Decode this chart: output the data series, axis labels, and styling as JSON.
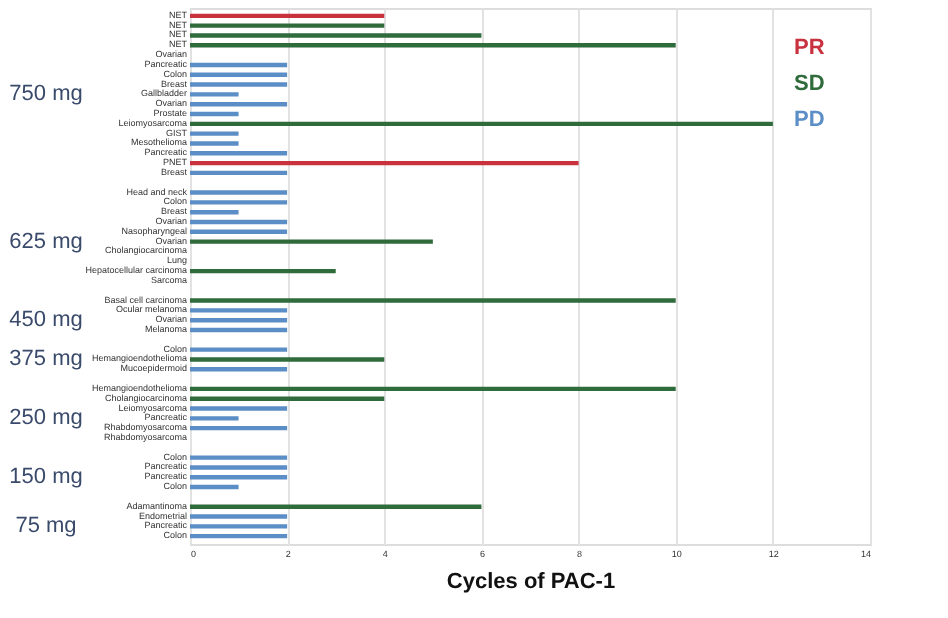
{
  "chart_data": {
    "type": "bar",
    "orientation": "horizontal",
    "xlabel": "Cycles of PAC-1",
    "categories": [
      "NET",
      "NET",
      "NET",
      "NET",
      "Ovarian",
      "Pancreatic",
      "Colon",
      "Breast",
      "Gallbladder",
      "Ovarian",
      "Prostate",
      "Leiomyosarcoma",
      "GIST",
      "Mesothelioma",
      "Pancreatic",
      "PNET",
      "Breast",
      null,
      "Head and neck",
      "Colon",
      "Breast",
      "Ovarian",
      "Nasopharyngeal",
      "Ovarian",
      "Cholangiocarcinoma",
      "Lung",
      "Hepatocellular carcinoma",
      "Sarcoma",
      null,
      "Basal cell carcinoma",
      "Ocular melanoma",
      "Ovarian",
      "Melanoma",
      null,
      "Colon",
      "Hemangioendothelioma",
      "Mucoepidermoid",
      null,
      "Hemangioendothelioma",
      "Cholangiocarcinoma",
      "Leiomyosarcoma",
      "Pancreatic",
      "Rhabdomyosarcoma",
      "Rhabdomyosarcoma",
      null,
      "Colon",
      "Pancreatic",
      "Pancreatic",
      "Colon",
      null,
      "Adamantinoma",
      "Endometrial",
      "Pancreatic",
      "Colon"
    ],
    "series": [
      {
        "name": "PR",
        "color": "#c8313e",
        "values": [
          4,
          null,
          null,
          null,
          null,
          null,
          null,
          null,
          null,
          null,
          null,
          null,
          null,
          null,
          null,
          8,
          null,
          null,
          null,
          null,
          null,
          null,
          null,
          null,
          null,
          null,
          null,
          null,
          null,
          null,
          null,
          null,
          null,
          null,
          null,
          null,
          null,
          null,
          null,
          null,
          null,
          null,
          null,
          null,
          null,
          null,
          null,
          null,
          null,
          null,
          null,
          null,
          null,
          null
        ]
      },
      {
        "name": "SD",
        "color": "#2f6b3b",
        "values": [
          null,
          4,
          6,
          10,
          null,
          null,
          null,
          null,
          null,
          null,
          null,
          12,
          null,
          null,
          null,
          null,
          null,
          null,
          null,
          null,
          null,
          null,
          null,
          5,
          null,
          null,
          3,
          null,
          null,
          10,
          null,
          null,
          null,
          null,
          null,
          4,
          null,
          null,
          10,
          4,
          null,
          null,
          null,
          null,
          null,
          null,
          null,
          null,
          null,
          null,
          6,
          null,
          null,
          null
        ]
      },
      {
        "name": "PD",
        "color": "#5b8ec6",
        "values": [
          null,
          null,
          null,
          null,
          null,
          2,
          2,
          2,
          1,
          2,
          1,
          null,
          1,
          1,
          2,
          null,
          2,
          null,
          2,
          2,
          1,
          2,
          2,
          null,
          null,
          null,
          null,
          null,
          null,
          null,
          2,
          2,
          2,
          null,
          2,
          null,
          2,
          null,
          null,
          null,
          2,
          1,
          2,
          null,
          null,
          2,
          2,
          2,
          1,
          null,
          null,
          2,
          2,
          2
        ]
      }
    ],
    "xlim": [
      0,
      14
    ],
    "xticks": [
      0,
      2,
      4,
      6,
      8,
      10,
      12,
      14
    ],
    "grid": "x",
    "legend": "top right",
    "annotations": [
      "750 mg",
      "625 mg",
      "450 mg",
      "375 mg",
      "250 mg",
      "150 mg",
      "75 mg"
    ]
  }
}
